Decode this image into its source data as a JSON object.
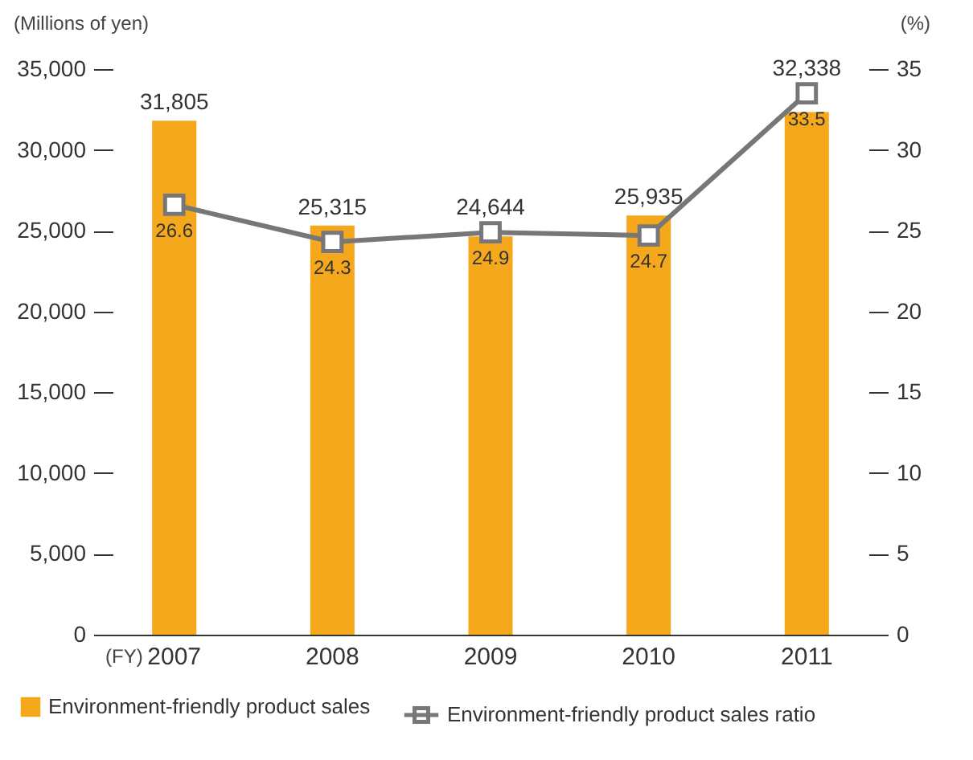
{
  "chart_data": {
    "type": "bar",
    "xlabel": "(FY)",
    "ylabel": "(Millions of yen)",
    "y2label": "(%)",
    "categories": [
      "2007",
      "2008",
      "2009",
      "2010",
      "2011"
    ],
    "series": [
      {
        "name": "Environment-friendly product sales",
        "color": "#f5a81c",
        "values": [
          31805,
          25315,
          24644,
          25935,
          32338
        ],
        "value_labels": [
          "31,805",
          "25,315",
          "24,644",
          "25,935",
          "32,338"
        ]
      },
      {
        "name": "Environment-friendly product sales ratio",
        "type": "line",
        "axis": "y2",
        "color": "#777777",
        "marker": "square",
        "values": [
          26.6,
          24.3,
          24.9,
          24.7,
          33.5
        ],
        "value_labels": [
          "26.6",
          "24.3",
          "24.9",
          "24.7",
          "33.5"
        ]
      }
    ],
    "ylim": [
      0,
      35000
    ],
    "yticks": [
      0,
      {
        "value": 5000,
        "label": "5,000"
      },
      {
        "value": 10000,
        "label": "10,000"
      },
      {
        "value": 15000,
        "label": "15,000"
      },
      {
        "value": 20000,
        "label": "20,000"
      },
      {
        "value": 25000,
        "label": "25,000"
      },
      {
        "value": 30000,
        "label": "30,000"
      },
      {
        "value": 35000,
        "label": "35,000"
      }
    ],
    "y2lim": [
      0,
      35
    ],
    "y2ticks": [
      0,
      5,
      10,
      15,
      20,
      25,
      30,
      35
    ],
    "grid": false,
    "legend": "bottom",
    "line_style": "solid"
  }
}
